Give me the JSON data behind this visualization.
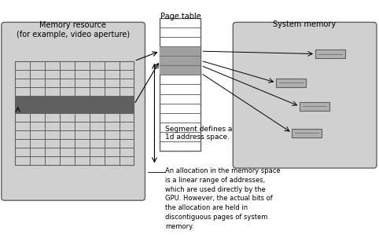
{
  "bg_color": "#f0f0f0",
  "white": "#ffffff",
  "light_gray": "#d0d0d0",
  "mid_gray": "#a0a0a0",
  "dark_gray": "#606060",
  "black": "#000000",
  "title_memory": "Memory resource\n(for example, video aperture)",
  "title_page": "Page table",
  "title_system": "System memory",
  "label_segment": "Segment defines a\n1d address space.",
  "label_allocation": "An allocation in the memory space\nis a linear range of addresses,\nwhich are used directly by the\nGPU. However, the actual bits of\nthe allocation are held in\ndiscontiguous pages of system\nmemory.",
  "fig_width": 4.82,
  "fig_height": 3.03,
  "dpi": 100
}
